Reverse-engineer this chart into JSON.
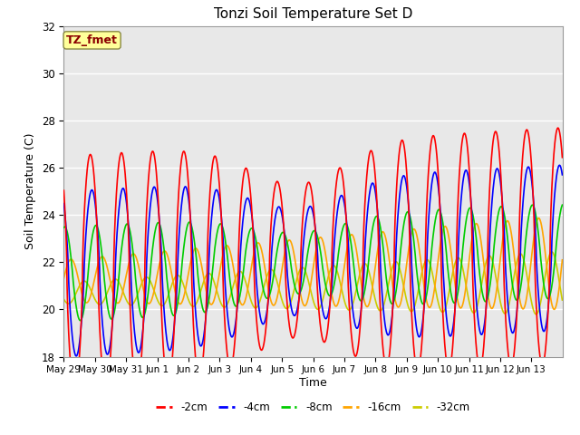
{
  "title": "Tonzi Soil Temperature Set D",
  "xlabel": "Time",
  "ylabel": "Soil Temperature (C)",
  "ylim": [
    18,
    32
  ],
  "annotation_text": "TZ_fmet",
  "annotation_color": "#8B0000",
  "annotation_bg": "#FFFF99",
  "series_colors": {
    "-2cm": "#FF0000",
    "-4cm": "#0000FF",
    "-8cm": "#00CC00",
    "-16cm": "#FFA500",
    "-32cm": "#CCCC00"
  },
  "series_labels": [
    "-2cm",
    "-4cm",
    "-8cm",
    "-16cm",
    "-32cm"
  ],
  "tick_labels": [
    "May 29",
    "May 30",
    "May 31",
    "Jun 1",
    "Jun 2",
    "Jun 3",
    "Jun 4",
    "Jun 5",
    "Jun 6",
    "Jun 7",
    "Jun 8",
    "Jun 9",
    "Jun 10",
    "Jun 11",
    "Jun 12",
    "Jun 13"
  ],
  "background_color": "#E8E8E8",
  "grid_color": "#FFFFFF",
  "fig_bg": "#FFFFFF",
  "base_temp": 21.5,
  "amp_2cm": 5.0,
  "amp_4cm": 3.5,
  "amp_8cm": 2.0,
  "amp_16cm": 0.9,
  "amp_32cm": 0.45,
  "trend_total": 1.2,
  "n_days": 16,
  "n_per_day": 96
}
